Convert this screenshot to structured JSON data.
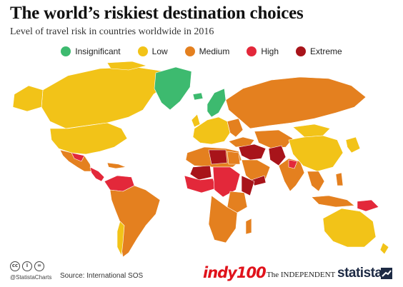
{
  "header": {
    "title": "The world’s riskiest destination choices",
    "subtitle": "Level of travel risk in countries worldwide in 2016"
  },
  "legend": [
    {
      "label": "Insignificant",
      "color": "#3dba6f"
    },
    {
      "label": "Low",
      "color": "#f2c318"
    },
    {
      "label": "Medium",
      "color": "#e4801f"
    },
    {
      "label": "High",
      "color": "#e3283a"
    },
    {
      "label": "Extreme",
      "color": "#a8141a"
    }
  ],
  "colors": {
    "insignificant": "#3dba6f",
    "low": "#f2c318",
    "medium": "#e4801f",
    "high": "#e3283a",
    "extreme": "#a8141a"
  },
  "footer": {
    "cc_icons": [
      "cc",
      "i",
      "="
    ],
    "handle": "@StatistaCharts",
    "source": "Source: International SOS",
    "indy_logo": "indy100",
    "independent_logo": "The INDEPENDENT",
    "statista_logo": "statista"
  }
}
